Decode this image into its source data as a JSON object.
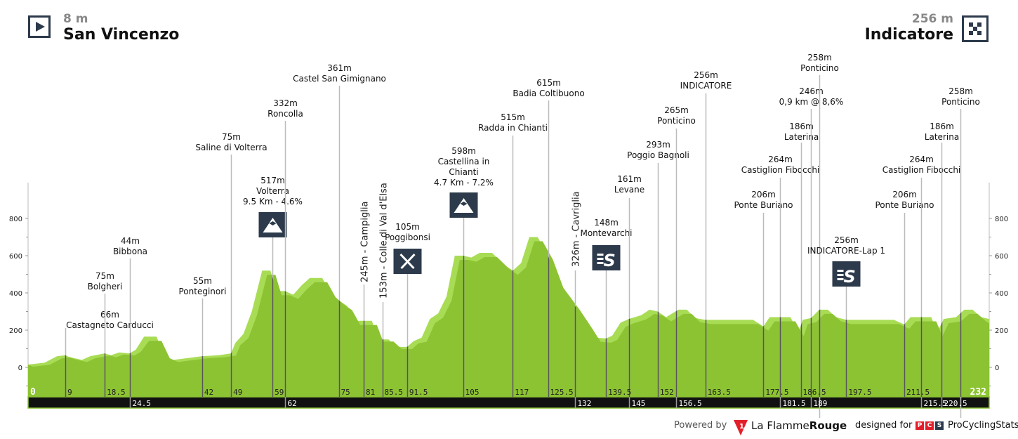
{
  "start": {
    "elevation": "8 m",
    "name": "San Vincenzo",
    "icon": "play-start-icon"
  },
  "finish": {
    "elevation": "256 m",
    "name": "Indicatore",
    "icon": "checkered-flag-icon"
  },
  "footer": {
    "powered_by": "Powered by",
    "brand_1": "La Flamme",
    "brand_2": "Rouge",
    "designed_for": "designed for",
    "pcs_letters": [
      "P",
      "C",
      "S"
    ],
    "pcs_name": "ProCyclingStats"
  },
  "colors": {
    "profile_light": "#a8dc55",
    "profile_dark": "#8cc332",
    "bar": "#111111",
    "icon_bg": "#2c3a4b"
  },
  "chart_data": {
    "type": "area",
    "xlim": [
      0,
      232
    ],
    "ylim": [
      -200,
      800
    ],
    "y_ticks": [
      0,
      200,
      400,
      600,
      800
    ],
    "grid": false,
    "profile": [
      [
        0,
        15
      ],
      [
        4,
        25
      ],
      [
        7,
        60
      ],
      [
        9,
        65
      ],
      [
        10,
        55
      ],
      [
        13,
        40
      ],
      [
        15,
        60
      ],
      [
        18.5,
        75
      ],
      [
        20,
        65
      ],
      [
        22,
        80
      ],
      [
        24.5,
        75
      ],
      [
        26,
        95
      ],
      [
        28,
        165
      ],
      [
        31,
        165
      ],
      [
        33,
        60
      ],
      [
        35,
        40
      ],
      [
        42,
        60
      ],
      [
        46,
        65
      ],
      [
        49,
        75
      ],
      [
        50,
        130
      ],
      [
        52,
        180
      ],
      [
        54,
        300
      ],
      [
        56.5,
        520
      ],
      [
        58.5,
        520
      ],
      [
        60,
        410
      ],
      [
        62,
        410
      ],
      [
        64,
        390
      ],
      [
        66,
        440
      ],
      [
        68,
        480
      ],
      [
        71,
        480
      ],
      [
        73,
        400
      ],
      [
        75,
        360
      ],
      [
        77,
        330
      ],
      [
        79,
        250
      ],
      [
        83,
        250
      ],
      [
        84.5,
        150
      ],
      [
        87,
        150
      ],
      [
        89,
        110
      ],
      [
        91.5,
        110
      ],
      [
        93,
        140
      ],
      [
        95,
        160
      ],
      [
        97,
        260
      ],
      [
        99,
        290
      ],
      [
        101,
        380
      ],
      [
        103,
        600
      ],
      [
        105,
        600
      ],
      [
        107,
        590
      ],
      [
        109,
        615
      ],
      [
        112,
        615
      ],
      [
        115,
        550
      ],
      [
        117,
        520
      ],
      [
        119,
        560
      ],
      [
        121,
        700
      ],
      [
        123,
        700
      ],
      [
        125.5,
        600
      ],
      [
        128,
        450
      ],
      [
        132,
        330
      ],
      [
        135,
        230
      ],
      [
        137,
        160
      ],
      [
        139.5,
        155
      ],
      [
        141,
        170
      ],
      [
        143,
        240
      ],
      [
        145,
        260
      ],
      [
        148,
        280
      ],
      [
        150,
        310
      ],
      [
        152,
        300
      ],
      [
        154,
        270
      ],
      [
        157,
        310
      ],
      [
        159,
        310
      ],
      [
        161,
        265
      ],
      [
        163.5,
        255
      ],
      [
        175,
        255
      ],
      [
        177.5,
        220
      ],
      [
        179,
        270
      ],
      [
        184,
        270
      ],
      [
        186,
        190
      ],
      [
        187,
        255
      ],
      [
        189,
        265
      ],
      [
        191,
        310
      ],
      [
        193,
        310
      ],
      [
        195,
        270
      ],
      [
        197.5,
        255
      ],
      [
        209,
        255
      ],
      [
        211.5,
        230
      ],
      [
        213,
        270
      ],
      [
        218,
        270
      ],
      [
        219.5,
        190
      ],
      [
        221,
        260
      ],
      [
        224,
        270
      ],
      [
        226,
        310
      ],
      [
        228,
        310
      ],
      [
        230,
        270
      ],
      [
        232,
        260
      ]
    ],
    "km_labels_top": [
      "0",
      "9",
      "18.5",
      "42",
      "49",
      "59",
      "75",
      "81",
      "85.5",
      "91.5",
      "105",
      "117",
      "125.5",
      "139.5",
      "152",
      "163.5",
      "177.5",
      "186.5",
      "197.5",
      "211.5",
      "232"
    ],
    "km_labels_bottom": [
      "24.5",
      "62",
      "132",
      "145",
      "156.5",
      "181.5",
      "189",
      "215.5",
      "220.5"
    ],
    "markers": [
      {
        "km": 9,
        "elev": "66m",
        "name": "Castagneto Carducci"
      },
      {
        "km": 18.5,
        "elev": "75m",
        "name": "Bolgheri"
      },
      {
        "km": 24.5,
        "elev": "44m",
        "name": "Bibbona"
      },
      {
        "km": 42,
        "elev": "55m",
        "name": "Ponteginori"
      },
      {
        "km": 49,
        "elev": "75m",
        "name": "Saline di Volterra"
      },
      {
        "km": 59,
        "elev": "517m",
        "name": "Volterra",
        "extra": "9.5 Km - 4.6%",
        "icon": "mountain-icon"
      },
      {
        "km": 62,
        "elev": "332m",
        "name": "Roncolla"
      },
      {
        "km": 75,
        "elev": "361m",
        "name": "Castel San Gimignano"
      },
      {
        "km": 81,
        "text": "245m - Campiglia",
        "rotated": true
      },
      {
        "km": 85.5,
        "text": "153m - Colle di Val d'Elsa",
        "rotated": true
      },
      {
        "km": 91.5,
        "elev": "105m",
        "name": "Poggibonsi",
        "icon": "feed-zone-icon"
      },
      {
        "km": 105,
        "elev": "598m",
        "name": "Castellina in",
        "name2": "Chianti",
        "extra": "4.7 Km - 7.2%",
        "icon": "mountain-icon"
      },
      {
        "km": 117,
        "elev": "515m",
        "name": "Radda in Chianti"
      },
      {
        "km": 125.5,
        "elev": "615m",
        "name": "Badia Coltibuono"
      },
      {
        "km": 132,
        "text": "326m - Cavriglia",
        "rotated": true
      },
      {
        "km": 139.5,
        "elev": "148m",
        "name": "Montevarchi",
        "icon": "sprint-icon"
      },
      {
        "km": 145,
        "elev": "161m",
        "name": "Levane"
      },
      {
        "km": 152,
        "elev": "293m",
        "name": "Poggio Bagnoli"
      },
      {
        "km": 156.5,
        "elev": "265m",
        "name": "Ponticino"
      },
      {
        "km": 163.5,
        "elev": "256m",
        "name": "INDICATORE"
      },
      {
        "km": 177.5,
        "elev": "206m",
        "name": "Ponte Buriano"
      },
      {
        "km": 181.5,
        "elev": "264m",
        "name": "Castiglion Fibocchi"
      },
      {
        "km": 186.5,
        "elev": "186m",
        "name": "Laterina"
      },
      {
        "km": 189,
        "elev": "246m",
        "name": "0,9 km @ 8,6%"
      },
      {
        "km": 191,
        "elev": "258m",
        "name": "Ponticino"
      },
      {
        "km": 197.5,
        "elev": "256m",
        "name": "INDICATORE-Lap 1",
        "icon": "sprint-icon"
      },
      {
        "km": 211.5,
        "elev": "206m",
        "name": "Ponte Buriano"
      },
      {
        "km": 215.5,
        "elev": "264m",
        "name": "Castiglion Fibocchi"
      },
      {
        "km": 220.5,
        "elev": "186m",
        "name": "Laterina"
      },
      {
        "km": 225,
        "elev": "258m",
        "name": "Ponticino"
      }
    ]
  }
}
